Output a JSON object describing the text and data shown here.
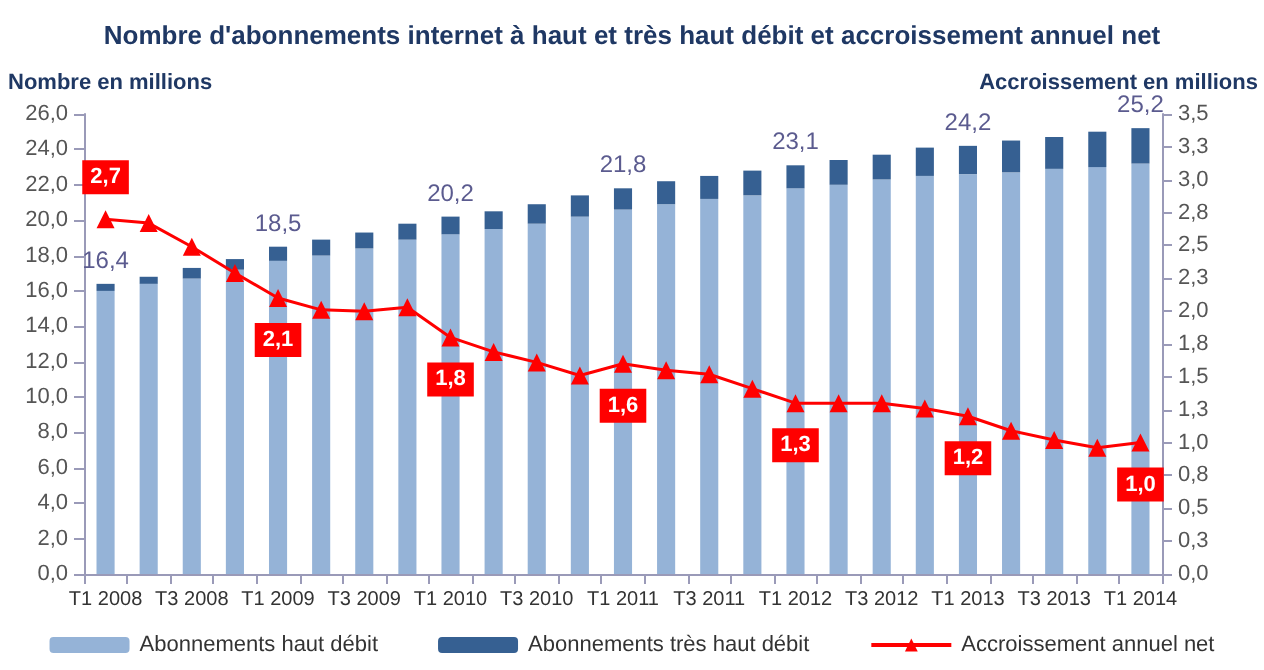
{
  "chart_data": {
    "type": "bar",
    "title": "Nombre d'abonnements internet à haut et très haut débit et accroissement annuel net",
    "ylabel": "Nombre en millions",
    "y2label": "Accroissement en millions",
    "categories": [
      "T1 2008",
      null,
      "T3 2008",
      null,
      "T1 2009",
      null,
      "T3 2009",
      null,
      "T1 2010",
      null,
      "T3 2010",
      null,
      "T1 2011",
      null,
      "T3 2011",
      null,
      "T1 2012",
      null,
      "T3 2012",
      null,
      "T1 2013",
      null,
      "T3 2013",
      null,
      "T1 2014"
    ],
    "stacked": true,
    "series": [
      {
        "name": "Abonnements haut débit",
        "color": "#95b3d7",
        "values": [
          16.0,
          16.4,
          16.7,
          17.2,
          17.7,
          18.0,
          18.4,
          18.9,
          19.2,
          19.5,
          19.8,
          20.2,
          20.6,
          20.9,
          21.2,
          21.4,
          21.8,
          22.0,
          22.3,
          22.5,
          22.6,
          22.7,
          22.9,
          23.0,
          23.2
        ]
      },
      {
        "name": "Abonnements très haut débit",
        "color": "#366092",
        "values": [
          0.4,
          0.4,
          0.6,
          0.6,
          0.8,
          0.9,
          0.9,
          0.9,
          1.0,
          1.0,
          1.1,
          1.2,
          1.2,
          1.3,
          1.3,
          1.4,
          1.3,
          1.4,
          1.4,
          1.6,
          1.6,
          1.8,
          1.8,
          2.0,
          2.0
        ]
      },
      {
        "name": "Accroissement annuel net",
        "type": "line",
        "axis": "y2",
        "color": "#ff0000",
        "marker": "triangle",
        "values": [
          2.7,
          2.67,
          2.49,
          2.29,
          2.1,
          2.01,
          2.0,
          2.03,
          1.8,
          1.69,
          1.61,
          1.51,
          1.6,
          1.55,
          1.52,
          1.41,
          1.3,
          1.3,
          1.3,
          1.26,
          1.2,
          1.09,
          1.02,
          0.96,
          1.0
        ],
        "value_labels": [
          "2,7",
          null,
          null,
          null,
          "2,1",
          null,
          null,
          null,
          "1,8",
          null,
          null,
          null,
          "1,6",
          null,
          null,
          null,
          "1,3",
          null,
          null,
          null,
          "1,2",
          null,
          null,
          null,
          "1,0"
        ]
      }
    ],
    "totals": [
      "16,4",
      null,
      null,
      null,
      "18,5",
      null,
      null,
      null,
      "20,2",
      null,
      null,
      null,
      "21,8",
      null,
      null,
      null,
      "23,1",
      null,
      null,
      null,
      "24,2",
      null,
      null,
      null,
      "25,2"
    ],
    "ylim": [
      0,
      26
    ],
    "yticks": [
      {
        "value": 0,
        "label": "0,0"
      },
      {
        "value": 2,
        "label": "2,0"
      },
      {
        "value": 4,
        "label": "4,0"
      },
      {
        "value": 6,
        "label": "6,0"
      },
      {
        "value": 8,
        "label": "8,0"
      },
      {
        "value": 10,
        "label": "10,0"
      },
      {
        "value": 12,
        "label": "12,0"
      },
      {
        "value": 14,
        "label": "14,0"
      },
      {
        "value": 16,
        "label": "16,0"
      },
      {
        "value": 18,
        "label": "18,0"
      },
      {
        "value": 20,
        "label": "20,0"
      },
      {
        "value": 22,
        "label": "22,0"
      },
      {
        "value": 24,
        "label": "24,0"
      },
      {
        "value": 26,
        "label": "26,0"
      }
    ],
    "y2lim": [
      0,
      3.5
    ],
    "y2ticks": [
      {
        "value": 0,
        "label": "0,0"
      },
      {
        "value": 0.25,
        "label": "0,3"
      },
      {
        "value": 0.5,
        "label": "0,5"
      },
      {
        "value": 0.75,
        "label": "0,8"
      },
      {
        "value": 1,
        "label": "1,0"
      },
      {
        "value": 1.25,
        "label": "1,3"
      },
      {
        "value": 1.5,
        "label": "1,5"
      },
      {
        "value": 1.75,
        "label": "1,8"
      },
      {
        "value": 2,
        "label": "2,0"
      },
      {
        "value": 2.25,
        "label": "2,3"
      },
      {
        "value": 2.5,
        "label": "2,5"
      },
      {
        "value": 2.75,
        "label": "2,8"
      },
      {
        "value": 3,
        "label": "3,0"
      },
      {
        "value": 3.25,
        "label": "3,3"
      },
      {
        "value": 3.5,
        "label": "3,5"
      }
    ],
    "grid": false,
    "legend": "bottom"
  }
}
